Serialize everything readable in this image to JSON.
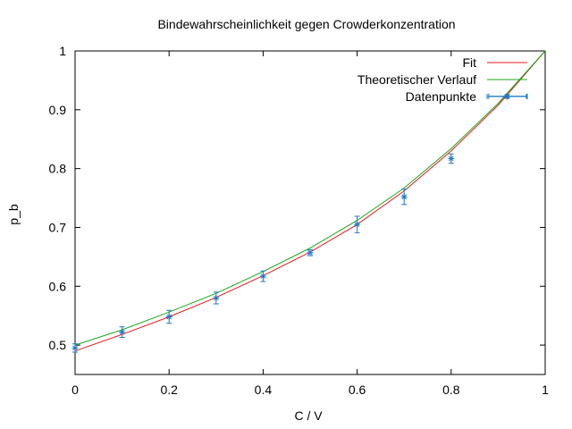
{
  "chart_data": {
    "type": "line",
    "title": "Bindewahrscheinlichkeit gegen Crowderkonzentration",
    "xlabel": "C / V",
    "ylabel": "p_b",
    "xlim": [
      0,
      1
    ],
    "ylim": [
      0.45,
      1
    ],
    "xticks": [
      "0",
      "0.2",
      "0.4",
      "0.6",
      "0.8",
      "1"
    ],
    "yticks": [
      "0.5",
      "0.6",
      "0.7",
      "0.8",
      "0.9",
      "1"
    ],
    "legend_position": "top-right",
    "grid": false,
    "series": [
      {
        "name": "Fit",
        "style": "line",
        "color": "#e41a1c",
        "x": [
          0,
          0.1,
          0.2,
          0.3,
          0.4,
          0.5,
          0.6,
          0.7,
          0.8,
          0.9,
          1.0
        ],
        "y": [
          0.49,
          0.518,
          0.548,
          0.581,
          0.618,
          0.658,
          0.705,
          0.762,
          0.83,
          0.908,
          1.0
        ]
      },
      {
        "name": "Theoretischer Verlauf",
        "style": "line",
        "color": "#1aa71a",
        "x": [
          0,
          0.1,
          0.2,
          0.3,
          0.4,
          0.5,
          0.6,
          0.7,
          0.8,
          0.9,
          1.0
        ],
        "y": [
          0.5,
          0.526,
          0.556,
          0.588,
          0.625,
          0.665,
          0.712,
          0.767,
          0.834,
          0.911,
          1.0
        ]
      },
      {
        "name": "Datenpunkte",
        "style": "points-errorbars",
        "color": "#1f78c8",
        "x": [
          0,
          0.1,
          0.2,
          0.3,
          0.4,
          0.5,
          0.6,
          0.7,
          0.8,
          0.92
        ],
        "y": [
          0.495,
          0.522,
          0.548,
          0.58,
          0.617,
          0.657,
          0.705,
          0.752,
          0.817,
          0.923
        ],
        "yerr": [
          0.007,
          0.009,
          0.011,
          0.01,
          0.009,
          0.005,
          0.014,
          0.013,
          0.008,
          0.0
        ],
        "xerr": [
          0,
          0,
          0,
          0,
          0,
          0,
          0,
          0,
          0,
          0.04
        ]
      }
    ]
  }
}
